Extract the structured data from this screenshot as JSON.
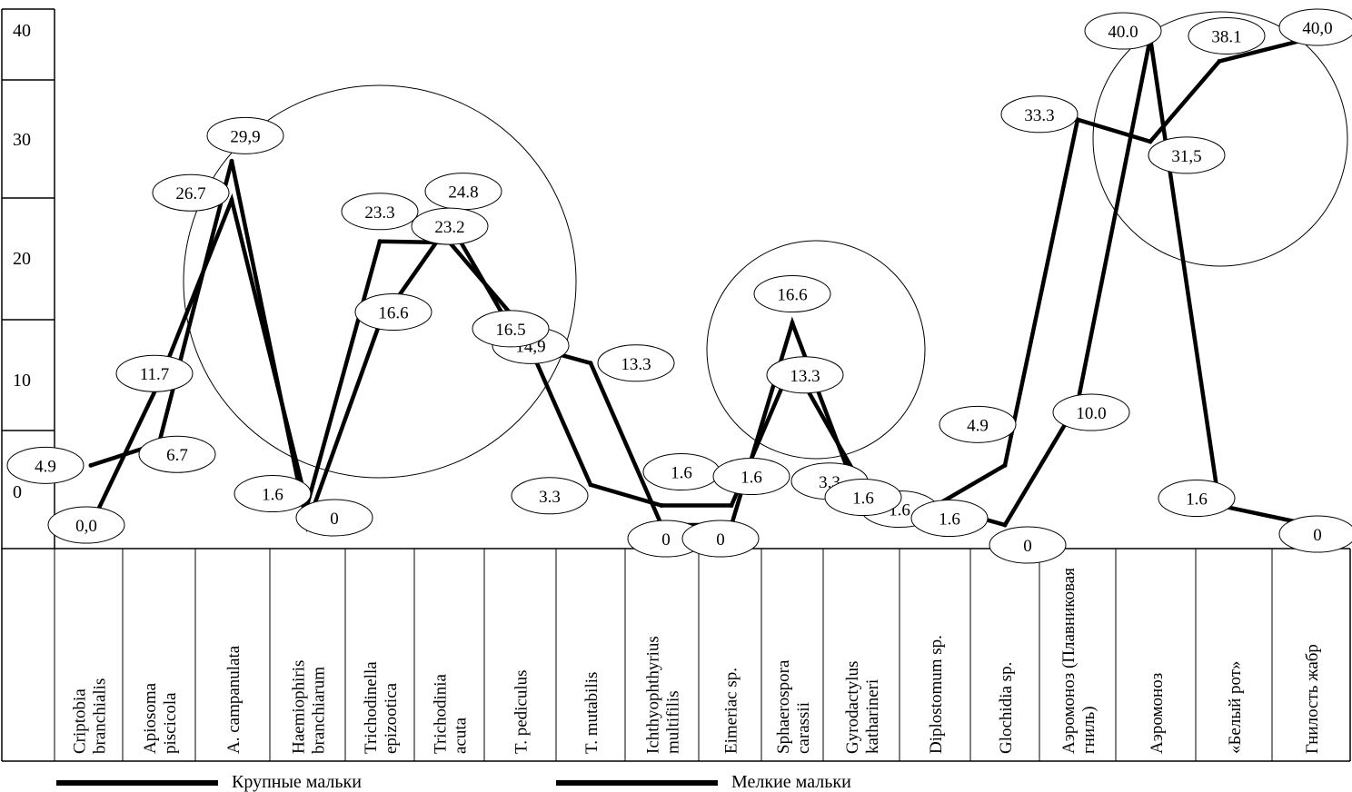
{
  "chart_data": {
    "type": "line",
    "title": "",
    "xlabel": "",
    "ylabel": "",
    "ylim": [
      0,
      40
    ],
    "y_ticks": [
      "40",
      "30",
      "20",
      "10",
      "0"
    ],
    "grid": false,
    "legend_position": "bottom",
    "categories": [
      "Criptobia branchialis",
      "Apiosoma piscicola",
      "A. campanulata",
      "Haemiophiris branchiarum",
      "Trichodinella epizootica",
      "Trichodinia acuta",
      "T. pediculus",
      "T. mutabilis",
      "Ichthyophthyrius multifilis",
      "Eimeriac sp.",
      "Sphaerospora carassii",
      "Gyrodactylus katharineri",
      "Diplostomum sp.",
      "Glochidia sp.",
      "Аэромоноз (Плавниковая гниль)",
      "Аэромоноз",
      "«Белый рот»",
      "Гнилость жабр"
    ],
    "series": [
      {
        "name": "Крупные мальки",
        "values": [
          4.9,
          6.7,
          29.9,
          0,
          16.6,
          24.8,
          14.9,
          13.3,
          0,
          0,
          16.6,
          1.6,
          1.6,
          0,
          10.0,
          40.0,
          1.6,
          0
        ],
        "labels": [
          "4.9",
          "6.7",
          "29,9",
          "0",
          "16.6",
          "24.8",
          "14,9",
          "13.3",
          "0",
          "0",
          "16.6",
          "1.6",
          "1.6",
          "0",
          "10.0",
          "40.0",
          "1.6",
          "0"
        ]
      },
      {
        "name": "Мелкие мальки",
        "values": [
          0.0,
          11.7,
          26.7,
          1.6,
          23.3,
          23.2,
          16.5,
          3.3,
          1.6,
          1.6,
          13.3,
          3.3,
          1.6,
          4.9,
          33.3,
          31.5,
          38.1,
          40.0
        ],
        "labels": [
          "0,0",
          "11.7",
          "26.7",
          "1.6",
          "23.3",
          "23.2",
          "16.5",
          "3.3",
          "1.6",
          "1.6",
          "13.3",
          "3.3",
          "1.6",
          "4.9",
          "33.3",
          "31,5",
          "38.1",
          "40,0"
        ]
      }
    ],
    "annotations": [
      "circle-around-ciliates",
      "circle-around-sphaerospora",
      "circle-around-bacterial-diseases"
    ]
  },
  "legend": {
    "items": [
      "Крупные мальки",
      "Мелкие мальки"
    ]
  },
  "colors": {
    "line": "#000000",
    "background": "#ffffff"
  }
}
